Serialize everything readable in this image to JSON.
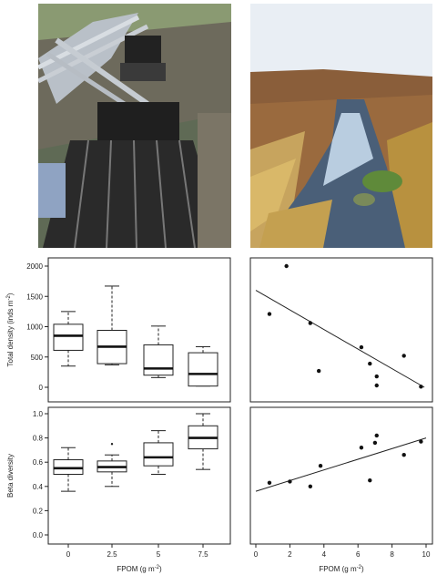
{
  "photos": [
    {
      "subject": "stream-channel-apparatus"
    },
    {
      "subject": "moorland-stream"
    }
  ],
  "chart_data": [
    {
      "type": "box",
      "panel": "top-left",
      "categories": [
        "0",
        "2.5",
        "5",
        "7.5"
      ],
      "ylabel_prefix": "Total density (inds m",
      "ylabel_sup": "-2",
      "ylabel_suffix": ")",
      "ylim": [
        0,
        2000
      ],
      "yticks": [
        "0",
        "500",
        "1000",
        "1500",
        "2000"
      ],
      "boxes": [
        {
          "whisker_low": 350,
          "q1": 610,
          "median": 850,
          "q3": 1040,
          "whisker_high": 1250,
          "outliers": []
        },
        {
          "whisker_low": 370,
          "q1": 390,
          "median": 670,
          "q3": 940,
          "whisker_high": 1670,
          "outliers": []
        },
        {
          "whisker_low": 160,
          "q1": 200,
          "median": 310,
          "q3": 700,
          "whisker_high": 1010,
          "outliers": []
        },
        {
          "whisker_low": 20,
          "q1": 20,
          "median": 220,
          "q3": 570,
          "whisker_high": 670,
          "outliers": []
        }
      ]
    },
    {
      "type": "scatter",
      "panel": "top-right",
      "xlim": [
        0,
        10
      ],
      "ylim": [
        0,
        2000
      ],
      "points": [
        [
          0.8,
          1210
        ],
        [
          1.8,
          2000
        ],
        [
          3.2,
          1060
        ],
        [
          3.7,
          270
        ],
        [
          6.2,
          660
        ],
        [
          6.7,
          390
        ],
        [
          7.1,
          180
        ],
        [
          7.1,
          30
        ],
        [
          8.7,
          520
        ],
        [
          9.7,
          10
        ]
      ],
      "fit_line": [
        [
          0,
          1600
        ],
        [
          9.9,
          0
        ]
      ]
    },
    {
      "type": "box",
      "panel": "bottom-left",
      "categories": [
        "0",
        "2.5",
        "5",
        "7.5"
      ],
      "xlabel_prefix": "FPOM (g m",
      "xlabel_sup": "-2",
      "xlabel_suffix": ")",
      "ylabel": "Beta diversity",
      "ylim": [
        0,
        1
      ],
      "yticks": [
        "0.0",
        "0.2",
        "0.4",
        "0.6",
        "0.8",
        "1.0"
      ],
      "boxes": [
        {
          "whisker_low": 0.36,
          "q1": 0.5,
          "median": 0.55,
          "q3": 0.62,
          "whisker_high": 0.72,
          "outliers": []
        },
        {
          "whisker_low": 0.4,
          "q1": 0.52,
          "median": 0.56,
          "q3": 0.61,
          "whisker_high": 0.66,
          "outliers": [
            0.75
          ]
        },
        {
          "whisker_low": 0.5,
          "q1": 0.57,
          "median": 0.64,
          "q3": 0.76,
          "whisker_high": 0.86,
          "outliers": []
        },
        {
          "whisker_low": 0.54,
          "q1": 0.71,
          "median": 0.8,
          "q3": 0.9,
          "whisker_high": 1.0,
          "outliers": []
        }
      ]
    },
    {
      "type": "scatter",
      "panel": "bottom-right",
      "xlabel_prefix": "FPOM (g m",
      "xlabel_sup": "-2",
      "xlabel_suffix": ")",
      "xlim": [
        0,
        10
      ],
      "ylim": [
        0,
        1
      ],
      "xticks": [
        "0",
        "2",
        "4",
        "6",
        "8",
        "10"
      ],
      "points": [
        [
          0.8,
          0.43
        ],
        [
          2.0,
          0.44
        ],
        [
          3.2,
          0.4
        ],
        [
          3.8,
          0.57
        ],
        [
          6.2,
          0.72
        ],
        [
          6.7,
          0.45
        ],
        [
          7.0,
          0.76
        ],
        [
          7.1,
          0.82
        ],
        [
          8.7,
          0.66
        ],
        [
          9.7,
          0.77
        ]
      ],
      "fit_line": [
        [
          0,
          0.36
        ],
        [
          10,
          0.8
        ]
      ]
    }
  ]
}
